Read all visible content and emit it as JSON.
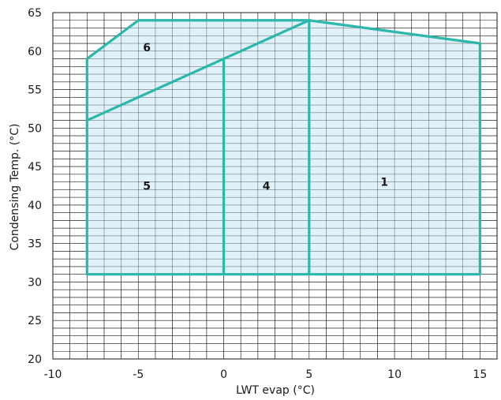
{
  "chart_data": {
    "type": "area",
    "title": "",
    "xlabel": "LWT evap (°C)",
    "ylabel": "Condensing Temp. (°C)",
    "xlim": [
      -10,
      16
    ],
    "ylim": [
      20,
      65
    ],
    "x_ticks": [
      {
        "value": -10,
        "label": "-10"
      },
      {
        "value": -5,
        "label": "-5"
      },
      {
        "value": 0,
        "label": "0"
      },
      {
        "value": 5,
        "label": "5"
      },
      {
        "value": 10,
        "label": "10"
      },
      {
        "value": 15,
        "label": "15"
      }
    ],
    "y_ticks": [
      {
        "value": 20,
        "label": "20"
      },
      {
        "value": 25,
        "label": "25"
      },
      {
        "value": 30,
        "label": "30"
      },
      {
        "value": 35,
        "label": "35"
      },
      {
        "value": 40,
        "label": "40"
      },
      {
        "value": 45,
        "label": "45"
      },
      {
        "value": 50,
        "label": "50"
      },
      {
        "value": 55,
        "label": "55"
      },
      {
        "value": 60,
        "label": "60"
      },
      {
        "value": 65,
        "label": "65"
      }
    ],
    "grid": {
      "x_step": 1,
      "y_step": 1,
      "visible": true
    },
    "envelope": [
      [
        -8,
        31
      ],
      [
        -8,
        59
      ],
      [
        -5,
        64
      ],
      [
        5,
        64
      ],
      [
        15,
        61
      ],
      [
        15,
        31
      ]
    ],
    "boundaries": [
      {
        "points": [
          [
            -8,
            51
          ],
          [
            5,
            64
          ]
        ]
      },
      {
        "points": [
          [
            0,
            31
          ],
          [
            0,
            59
          ]
        ]
      },
      {
        "points": [
          [
            5,
            31
          ],
          [
            5,
            64
          ]
        ]
      }
    ],
    "regions": [
      {
        "label": "1",
        "x": 9.4,
        "y": 43
      },
      {
        "label": "4",
        "x": 2.5,
        "y": 42.5
      },
      {
        "label": "5",
        "x": -4.5,
        "y": 42.5
      },
      {
        "label": "6",
        "x": -4.5,
        "y": 60.5
      }
    ],
    "colors": {
      "line": "#2bb7a9",
      "fill": "#dbeef9",
      "grid": "#1a1a1a",
      "text": "#1a1a1a"
    }
  }
}
